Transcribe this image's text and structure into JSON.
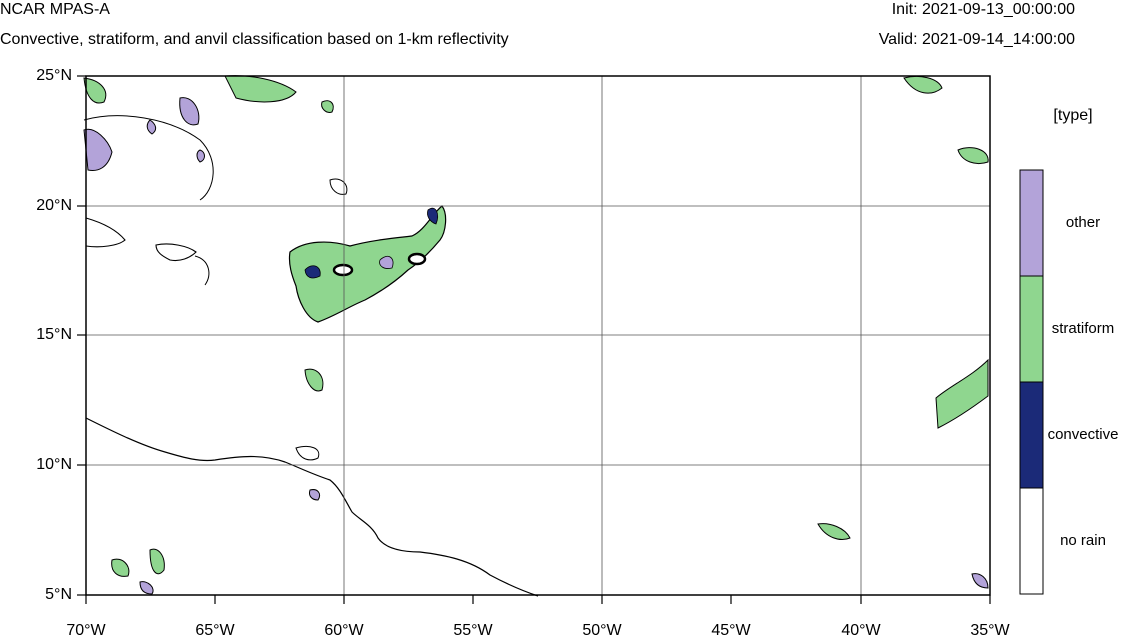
{
  "header": {
    "title": "NCAR MPAS-A",
    "subtitle": "Convective, stratiform, and anvil classification based on 1-km reflectivity",
    "init_label": "Init: 2021-09-13_00:00:00",
    "valid_label": "Valid: 2021-09-14_14:00:00"
  },
  "map": {
    "lon_range": [
      -70,
      -35
    ],
    "lat_range": [
      5,
      25
    ],
    "lat_ticks": [
      "25°N",
      "20°N",
      "15°N",
      "10°N",
      "5°N"
    ],
    "lon_ticks": [
      "70°W",
      "65°W",
      "60°W",
      "55°W",
      "50°W",
      "45°W",
      "40°W",
      "35°W"
    ]
  },
  "legend": {
    "title": "[type]",
    "items": [
      {
        "label": "other",
        "color": "#b3a3d9"
      },
      {
        "label": "stratiform",
        "color": "#8fd68f"
      },
      {
        "label": "convective",
        "color": "#1b2a78"
      },
      {
        "label": "no rain",
        "color": "#ffffff"
      }
    ]
  },
  "colors": {
    "outline": "#000000",
    "grid": "#555555"
  }
}
